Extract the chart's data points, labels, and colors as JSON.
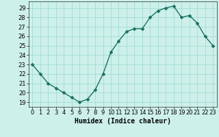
{
  "x": [
    0,
    1,
    2,
    3,
    4,
    5,
    6,
    7,
    8,
    9,
    10,
    11,
    12,
    13,
    14,
    15,
    16,
    17,
    18,
    19,
    20,
    21,
    22,
    23
  ],
  "y": [
    23,
    22,
    21,
    20.5,
    20,
    19.5,
    19,
    19.3,
    20.3,
    22,
    24.3,
    25.5,
    26.5,
    26.8,
    26.8,
    28,
    28.7,
    29,
    29.2,
    28,
    28.2,
    27.4,
    26,
    25
  ],
  "line_color": "#1a7060",
  "marker_color": "#1a7060",
  "bg_color": "#cdf0ea",
  "grid_color": "#99d9cc",
  "xlabel": "Humidex (Indice chaleur)",
  "xlim": [
    -0.5,
    23.5
  ],
  "ylim": [
    18.5,
    29.7
  ],
  "yticks": [
    19,
    20,
    21,
    22,
    23,
    24,
    25,
    26,
    27,
    28,
    29
  ],
  "xticks": [
    0,
    1,
    2,
    3,
    4,
    5,
    6,
    7,
    8,
    9,
    10,
    11,
    12,
    13,
    14,
    15,
    16,
    17,
    18,
    19,
    20,
    21,
    22,
    23
  ],
  "xlabel_fontsize": 7,
  "tick_fontsize": 6,
  "linewidth": 1.0,
  "markersize": 2.5
}
